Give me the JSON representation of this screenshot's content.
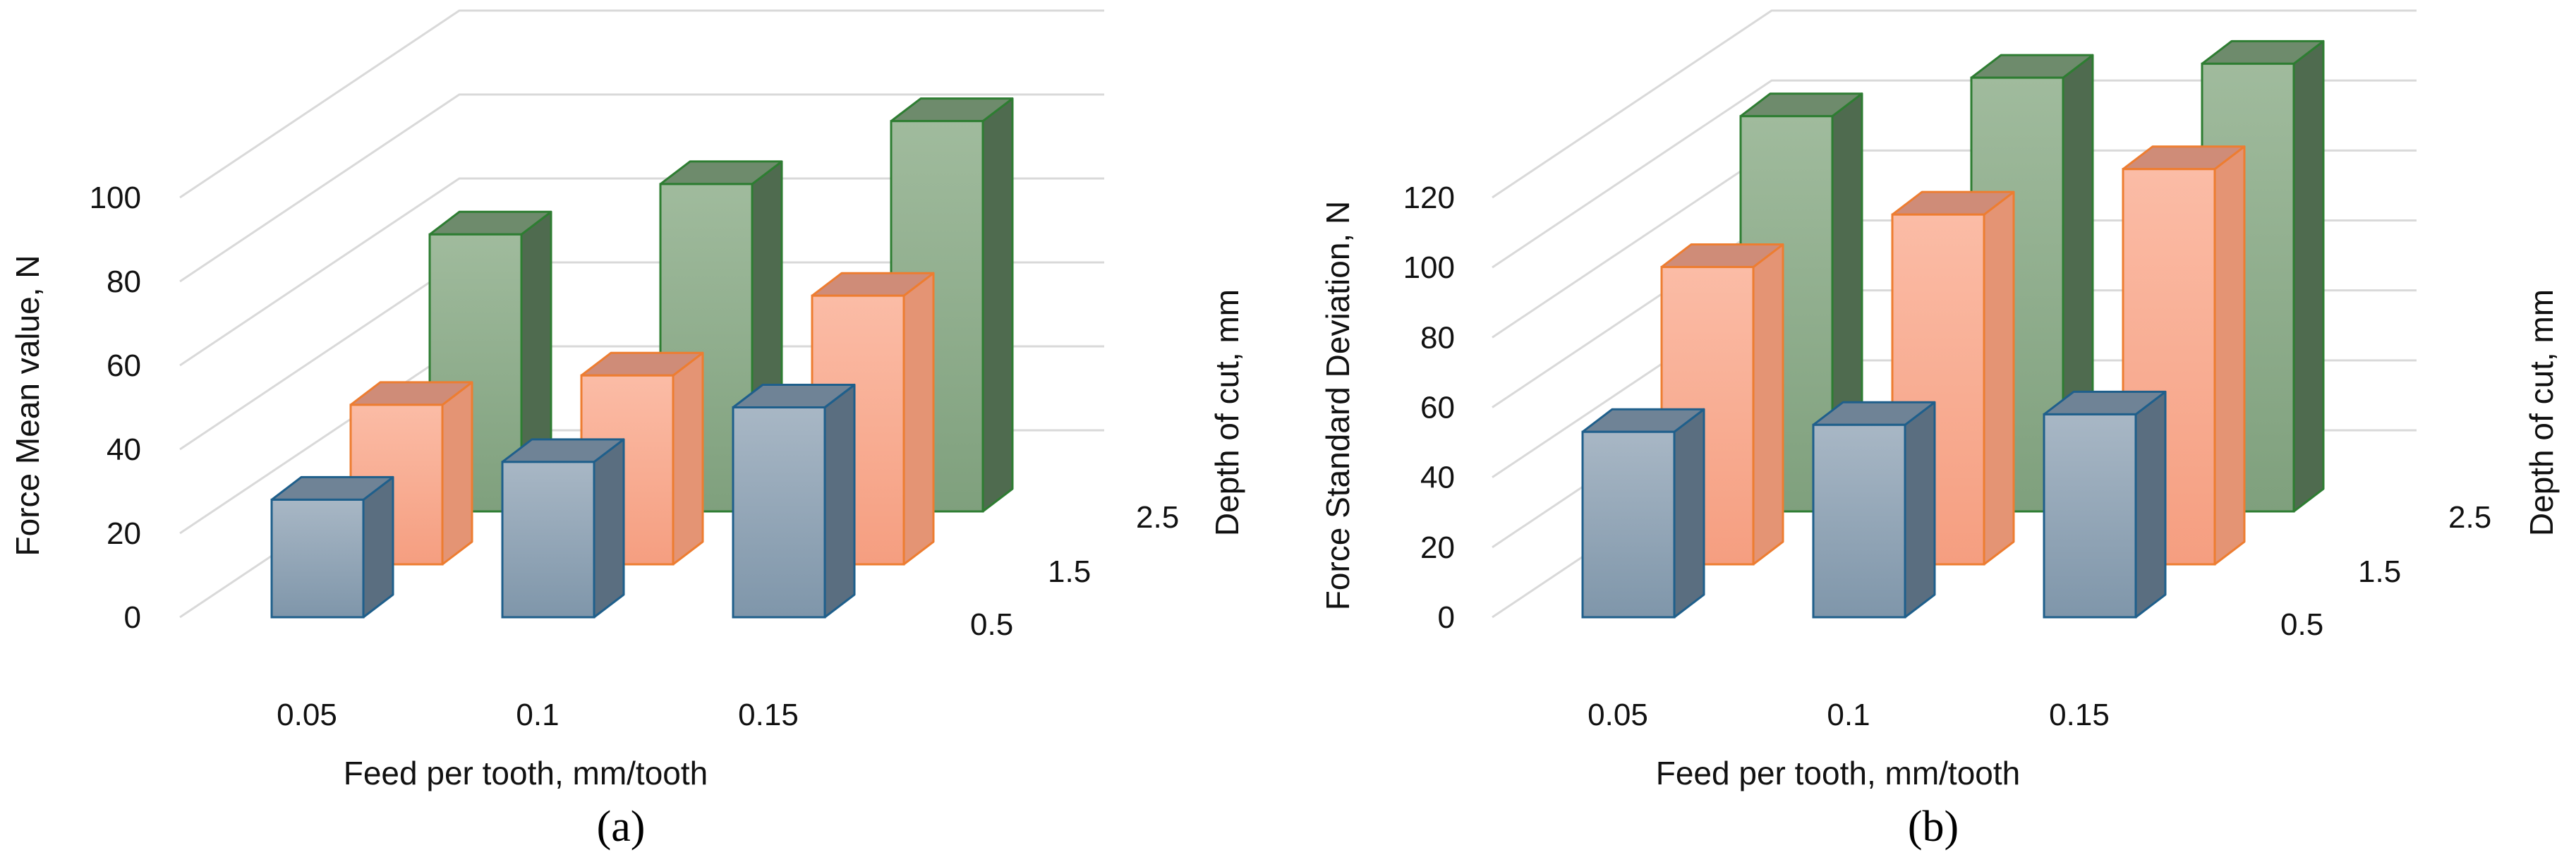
{
  "colors": {
    "series_0_5": {
      "front_top": "#a8b7c5",
      "front_bottom": "#7f96aa",
      "top": "#6f8396",
      "side": "#5a6e80",
      "stroke": "#1f5f8b"
    },
    "series_1_5": {
      "front_top": "#fbbca6",
      "front_bottom": "#f59e80",
      "top": "#cf8c78",
      "side": "#e49474",
      "stroke": "#ed7d31"
    },
    "series_2_5": {
      "front_top": "#a0bb9d",
      "front_bottom": "#7fa07d",
      "top": "#6e8b6c",
      "side": "#4f6b4f",
      "stroke": "#2e7d32"
    }
  },
  "chart_data": [
    {
      "type": "bar",
      "subtype": "3d-column",
      "panel_label": "(a)",
      "xlabel": "Feed per tooth, mm/tooth",
      "ylabel": "Force Mean value, N",
      "zlabel": "Depth of cut, mm",
      "categories": [
        "0.05",
        "0.1",
        "0.15"
      ],
      "depth_labels": [
        "0.5",
        "1.5",
        "2.5"
      ],
      "ylim": [
        0,
        100
      ],
      "yticks": [
        "0",
        "20",
        "40",
        "60",
        "80",
        "100"
      ],
      "series": [
        {
          "name": "0.5",
          "values": [
            28,
            37,
            50
          ]
        },
        {
          "name": "1.5",
          "values": [
            38,
            45,
            64
          ]
        },
        {
          "name": "2.5",
          "values": [
            66,
            78,
            93
          ]
        }
      ]
    },
    {
      "type": "bar",
      "subtype": "3d-column",
      "panel_label": "(b)",
      "xlabel": "Feed per tooth, mm/tooth",
      "ylabel": "Force Standard Deviation, N",
      "zlabel": "Depth of cut, mm",
      "categories": [
        "0.05",
        "0.1",
        "0.15"
      ],
      "depth_labels": [
        "0.5",
        "1.5",
        "2.5"
      ],
      "ylim": [
        0,
        120
      ],
      "yticks": [
        "0",
        "20",
        "40",
        "60",
        "80",
        "100",
        "120"
      ],
      "series": [
        {
          "name": "0.5",
          "values": [
            53,
            55,
            58
          ]
        },
        {
          "name": "1.5",
          "values": [
            85,
            100,
            113
          ]
        },
        {
          "name": "2.5",
          "values": [
            113,
            124,
            128
          ]
        }
      ]
    }
  ]
}
